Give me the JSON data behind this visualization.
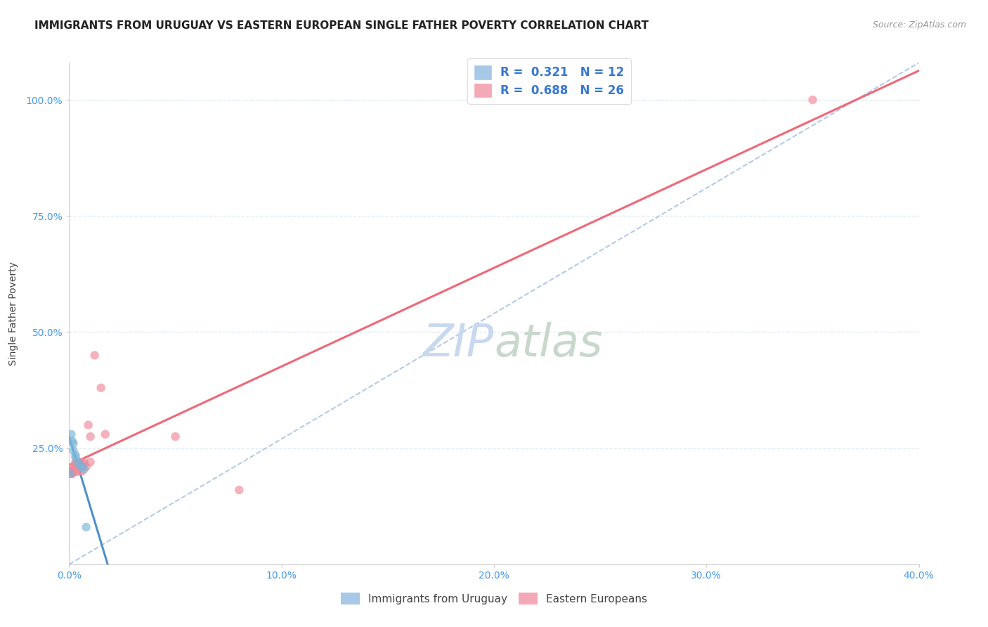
{
  "title": "IMMIGRANTS FROM URUGUAY VS EASTERN EUROPEAN SINGLE FATHER POVERTY CORRELATION CHART",
  "source": "Source: ZipAtlas.com",
  "ylabel": "Single Father Poverty",
  "xlim": [
    0.0,
    0.4
  ],
  "ylim": [
    0.0,
    1.08
  ],
  "xticks": [
    0.0,
    0.1,
    0.2,
    0.3,
    0.4
  ],
  "xtick_labels": [
    "0.0%",
    "10.0%",
    "20.0%",
    "30.0%",
    "40.0%"
  ],
  "ytick_positions": [
    0.25,
    0.5,
    0.75,
    1.0
  ],
  "ytick_labels": [
    "25.0%",
    "50.0%",
    "75.0%",
    "100.0%"
  ],
  "watermark_zip": "ZIP",
  "watermark_atlas": "atlas",
  "legend_entries": [
    {
      "label": "Immigrants from Uruguay",
      "color": "#a8c8e8",
      "R": "0.321",
      "N": "12"
    },
    {
      "label": "Eastern Europeans",
      "color": "#f4a8b8",
      "R": "0.688",
      "N": "26"
    }
  ],
  "uruguay_x": [
    0.0005,
    0.001,
    0.0015,
    0.002,
    0.002,
    0.003,
    0.003,
    0.004,
    0.005,
    0.006,
    0.007,
    0.008
  ],
  "uruguay_y": [
    0.195,
    0.28,
    0.265,
    0.245,
    0.26,
    0.23,
    0.235,
    0.22,
    0.215,
    0.21,
    0.205,
    0.08
  ],
  "eastern_x": [
    0.0005,
    0.001,
    0.001,
    0.0015,
    0.002,
    0.002,
    0.003,
    0.003,
    0.003,
    0.004,
    0.005,
    0.005,
    0.006,
    0.006,
    0.007,
    0.007,
    0.008,
    0.009,
    0.01,
    0.01,
    0.012,
    0.015,
    0.017,
    0.05,
    0.08,
    0.35
  ],
  "eastern_y": [
    0.2,
    0.195,
    0.205,
    0.195,
    0.2,
    0.21,
    0.2,
    0.215,
    0.22,
    0.2,
    0.215,
    0.22,
    0.21,
    0.2,
    0.215,
    0.22,
    0.21,
    0.3,
    0.22,
    0.275,
    0.45,
    0.38,
    0.28,
    0.275,
    0.16,
    1.0
  ],
  "dot_size": 80,
  "dot_alpha": 0.65,
  "uruguay_dot_color": "#7ab4d8",
  "eastern_dot_color": "#f08898",
  "uruguay_line_color": "#5090c8",
  "eastern_line_color": "#f06878",
  "ref_line_color": "#b0c8e8",
  "grid_color": "#dde8f0",
  "title_fontsize": 11,
  "axis_label_fontsize": 10,
  "tick_fontsize": 10,
  "source_fontsize": 9,
  "watermark_fontsize_zip": 46,
  "watermark_fontsize_atlas": 46,
  "watermark_color_zip": "#c8d8ee",
  "watermark_color_atlas": "#c8d8cc",
  "legend_fontsize": 12,
  "legend_R_N_color": "#3878d0"
}
